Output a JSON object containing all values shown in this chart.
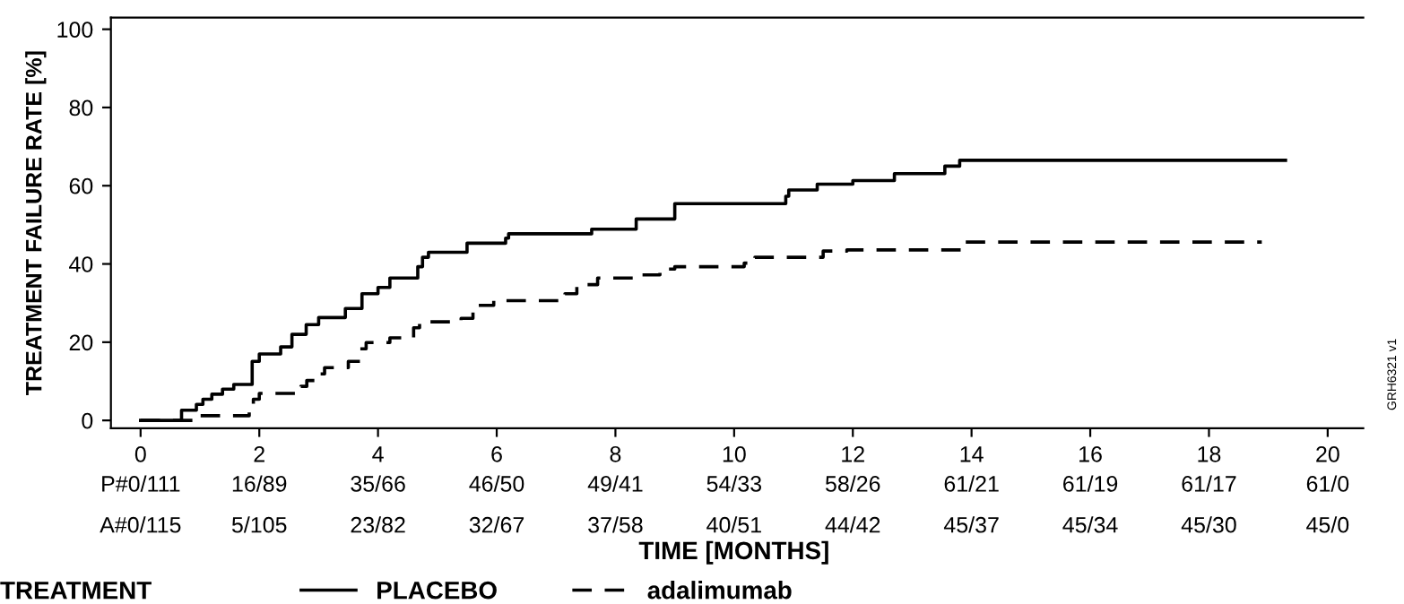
{
  "chart_data": {
    "type": "step",
    "xlabel": "TIME [MONTHS]",
    "ylabel": "TREATMENT FAILURE RATE [%]",
    "legend_title": "TREATMENT",
    "legend": "bottom",
    "grid": false,
    "xlim": [
      -0.5,
      20.6
    ],
    "ylim": [
      -2,
      103
    ],
    "xticks": [
      0,
      2,
      4,
      6,
      8,
      10,
      12,
      14,
      16,
      18,
      20
    ],
    "yticks": [
      0,
      20,
      40,
      60,
      80,
      100
    ],
    "series": [
      {
        "name": "PLACEBO",
        "color": "#000000",
        "line_style": "solid",
        "x": [
          0,
          0.69,
          0.94,
          1.05,
          1.2,
          1.38,
          1.57,
          1.88,
          2.0,
          2.36,
          2.55,
          2.79,
          3.0,
          3.45,
          3.73,
          4.0,
          4.2,
          4.67,
          4.75,
          4.85,
          5.5,
          6.15,
          6.2,
          7.6,
          8.35,
          9.0,
          10.87,
          10.92,
          11.4,
          12.0,
          12.7,
          13.55,
          13.8,
          19.29
        ],
        "values": [
          0,
          2.6,
          4.1,
          5.4,
          6.7,
          8.0,
          9.2,
          15.1,
          17.0,
          18.8,
          22.0,
          24.5,
          26.3,
          28.6,
          32.4,
          34.0,
          36.4,
          39.3,
          41.7,
          43.0,
          45.3,
          46.6,
          47.7,
          48.9,
          51.5,
          55.4,
          57.3,
          58.9,
          60.4,
          61.3,
          63.1,
          65.0,
          66.5,
          66.5
        ]
      },
      {
        "name": "adalimumab",
        "color": "#000000",
        "line_style": "dashed",
        "x": [
          0,
          0.96,
          1.83,
          1.9,
          2.0,
          2.7,
          2.8,
          2.95,
          3.1,
          3.5,
          3.7,
          3.8,
          4.2,
          4.6,
          4.7,
          5.4,
          5.6,
          5.95,
          7.15,
          7.35,
          7.7,
          8.3,
          8.75,
          9.0,
          10.17,
          10.35,
          11.5,
          11.9,
          13.85,
          18.89
        ],
        "values": [
          0,
          1.2,
          3.5,
          5.4,
          6.9,
          8.7,
          10.2,
          11.9,
          13.5,
          15.1,
          18.3,
          19.9,
          21.1,
          23.7,
          25.2,
          26.1,
          29.4,
          30.6,
          32.4,
          34.7,
          36.4,
          37.2,
          38.7,
          39.3,
          40.2,
          41.7,
          43.3,
          43.6,
          45.6,
          45.6
        ]
      }
    ],
    "annotations": [
      "P#0/111",
      "16/89",
      "35/66",
      "46/50",
      "49/41",
      "54/33",
      "58/26",
      "61/21",
      "61/19",
      "61/17",
      "61/0",
      "A#0/115",
      "5/105",
      "23/82",
      "32/67",
      "37/58",
      "40/51",
      "44/42",
      "45/37",
      "45/34",
      "45/30",
      "45/0",
      "GRH6321 v1"
    ]
  }
}
